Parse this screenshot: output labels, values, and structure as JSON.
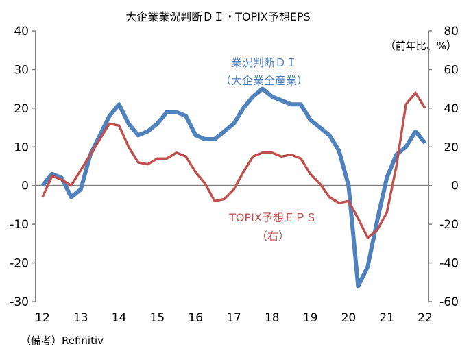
{
  "chart_data": {
    "type": "line",
    "title": "大企業業況判断ＤＩ・TOPIX予想EPS",
    "right_axis_unit": "（前年比、%）",
    "source_note": "（備考）Refinitiv",
    "x_tick_labels": [
      "12",
      "13",
      "14",
      "15",
      "16",
      "17",
      "18",
      "19",
      "20",
      "21",
      "22"
    ],
    "x_start": 2012,
    "x_step": 0.25,
    "y_left": {
      "range": [
        -30,
        40
      ],
      "ticks": [
        -30,
        -20,
        -10,
        0,
        10,
        20,
        30,
        40
      ]
    },
    "y_right": {
      "range": [
        -60,
        80
      ],
      "ticks": [
        -60,
        -40,
        -20,
        0,
        20,
        40,
        60,
        80
      ]
    },
    "grid": false,
    "zero_line": true,
    "series": [
      {
        "name_line1": "業況判断ＤＩ",
        "name_line2": "（大企業全産業）",
        "axis": "left",
        "color": "#4f81bd",
        "values": [
          0,
          3,
          2,
          -3,
          -1,
          8,
          13,
          18,
          21,
          16,
          13,
          14,
          16,
          19,
          19,
          18,
          13,
          12,
          12,
          14,
          16,
          20,
          23,
          25,
          23,
          22,
          21,
          21,
          17,
          15,
          13,
          9,
          0,
          -26,
          -21,
          -9,
          2,
          8,
          10,
          14,
          11
        ]
      },
      {
        "name_line1": "TOPIX予想ＥＰＳ",
        "name_line2": "（右）",
        "axis": "right",
        "color": "#c0504d",
        "values": [
          -6,
          5,
          3,
          0,
          8,
          16,
          24,
          32,
          31,
          20,
          12,
          11,
          14,
          14,
          17,
          15,
          7,
          1,
          -8,
          -7,
          -2,
          7,
          15,
          17,
          17,
          15,
          16,
          14,
          6,
          1,
          -6,
          -9,
          -8,
          -17,
          -27,
          -23,
          -14,
          10,
          42,
          48,
          40
        ]
      }
    ]
  }
}
